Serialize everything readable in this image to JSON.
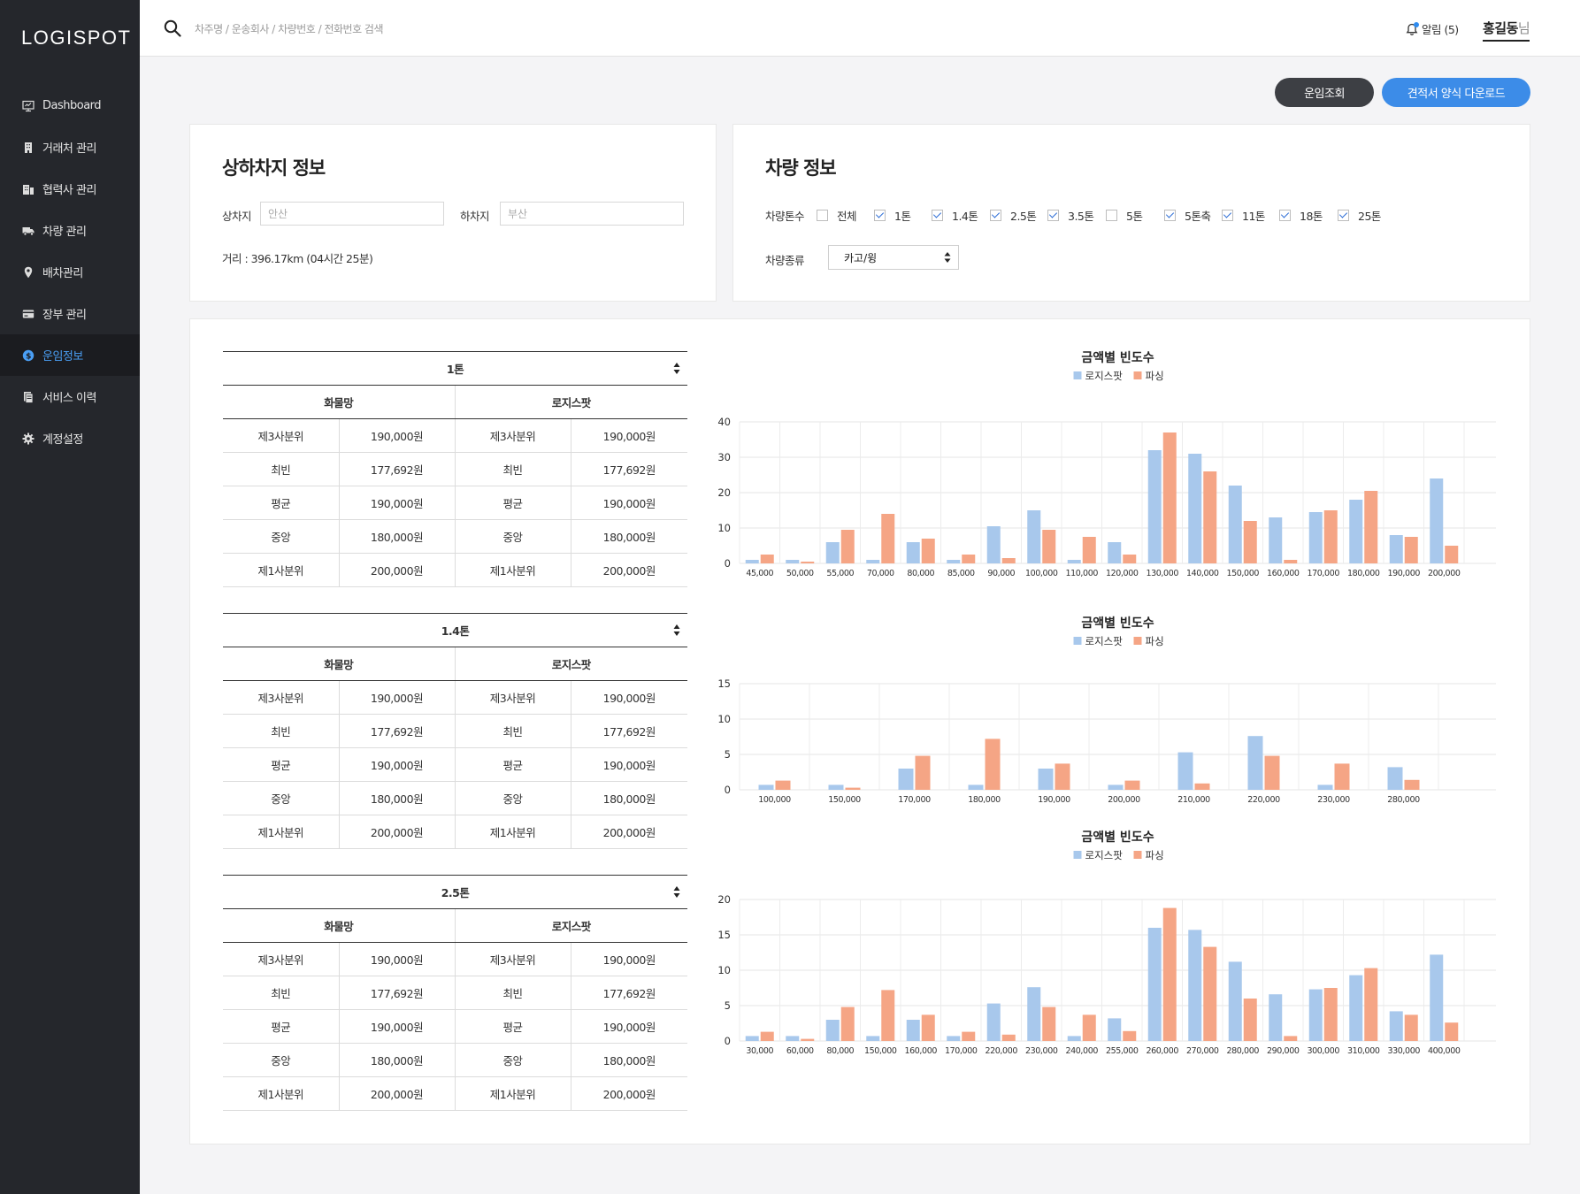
{
  "app": {
    "logo": "LOGISPOT"
  },
  "sidebar": {
    "items": [
      {
        "label": "Dashboard",
        "icon": "monitor-icon"
      },
      {
        "label": "거래처 관리",
        "icon": "building-icon"
      },
      {
        "label": "협력사 관리",
        "icon": "buildings-icon"
      },
      {
        "label": "차량 관리",
        "icon": "truck-icon"
      },
      {
        "label": "배차관리",
        "icon": "location-pin-icon"
      },
      {
        "label": "장부 관리",
        "icon": "card-icon"
      },
      {
        "label": "운임정보",
        "icon": "dollar-circle-icon",
        "active": true
      },
      {
        "label": "서비스 이력",
        "icon": "document-icon"
      },
      {
        "label": "계정설정",
        "icon": "gear-icon"
      }
    ]
  },
  "topbar": {
    "search_placeholder": "차주명 / 운송회사 / 차량번호 / 전화번호 검색",
    "alarm_label": "알림 (5)",
    "user_name": "홍길동",
    "user_suffix": "님"
  },
  "actions": {
    "fare_lookup": "운임조회",
    "download_quote": "견적서 양식 다운로드"
  },
  "load_info": {
    "title": "상하차지 정보",
    "pickup_label": "상차지",
    "pickup_placeholder": "안산",
    "dropoff_label": "하차지",
    "dropoff_placeholder": "부산",
    "distance": "거리 : 396.17km (04시간 25분)"
  },
  "vehicle_info": {
    "title": "차량 정보",
    "tonnage_label": "차량톤수",
    "tonnage_options": [
      {
        "label": "전체",
        "checked": false
      },
      {
        "label": "1톤",
        "checked": true
      },
      {
        "label": "1.4톤",
        "checked": true
      },
      {
        "label": "2.5톤",
        "checked": true
      },
      {
        "label": "3.5톤",
        "checked": true
      },
      {
        "label": "5톤",
        "checked": false
      },
      {
        "label": "5톤축",
        "checked": true
      },
      {
        "label": "11톤",
        "checked": true
      },
      {
        "label": "18톤",
        "checked": true
      },
      {
        "label": "25톤",
        "checked": true
      }
    ],
    "type_label": "차량종류",
    "type_value": "카고/윙"
  },
  "tables": [
    {
      "title": "1톤",
      "group_left": "화물망",
      "group_right": "로지스팟",
      "rows": [
        {
          "left_label": "제3사분위",
          "left_value": "190,000원",
          "right_label": "제3사분위",
          "right_value": "190,000원"
        },
        {
          "left_label": "최빈",
          "left_value": "177,692원",
          "right_label": "최빈",
          "right_value": "177,692원"
        },
        {
          "left_label": "평균",
          "left_value": "190,000원",
          "right_label": "평균",
          "right_value": "190,000원"
        },
        {
          "left_label": "중앙",
          "left_value": "180,000원",
          "right_label": "중앙",
          "right_value": "180,000원"
        },
        {
          "left_label": "제1사분위",
          "left_value": "200,000원",
          "right_label": "제1사분위",
          "right_value": "200,000원"
        }
      ]
    },
    {
      "title": "1.4톤",
      "group_left": "화물망",
      "group_right": "로지스팟",
      "rows": [
        {
          "left_label": "제3사분위",
          "left_value": "190,000원",
          "right_label": "제3사분위",
          "right_value": "190,000원"
        },
        {
          "left_label": "최빈",
          "left_value": "177,692원",
          "right_label": "최빈",
          "right_value": "177,692원"
        },
        {
          "left_label": "평균",
          "left_value": "190,000원",
          "right_label": "평균",
          "right_value": "190,000원"
        },
        {
          "left_label": "중앙",
          "left_value": "180,000원",
          "right_label": "중앙",
          "right_value": "180,000원"
        },
        {
          "left_label": "제1사분위",
          "left_value": "200,000원",
          "right_label": "제1사분위",
          "right_value": "200,000원"
        }
      ]
    },
    {
      "title": "2.5톤",
      "group_left": "화물망",
      "group_right": "로지스팟",
      "rows": [
        {
          "left_label": "제3사분위",
          "left_value": "190,000원",
          "right_label": "제3사분위",
          "right_value": "190,000원"
        },
        {
          "left_label": "최빈",
          "left_value": "177,692원",
          "right_label": "최빈",
          "right_value": "177,692원"
        },
        {
          "left_label": "평균",
          "left_value": "190,000원",
          "right_label": "평균",
          "right_value": "190,000원"
        },
        {
          "left_label": "중앙",
          "left_value": "180,000원",
          "right_label": "중앙",
          "right_value": "180,000원"
        },
        {
          "left_label": "제1사분위",
          "left_value": "200,000원",
          "right_label": "제1사분위",
          "right_value": "200,000원"
        }
      ]
    }
  ],
  "chart_data": [
    {
      "type": "bar",
      "title": "금액별 빈도수",
      "legend": "top-center",
      "grid": true,
      "ylim": [
        0,
        40
      ],
      "yticks": [
        0,
        10,
        20,
        30,
        40
      ],
      "categories": [
        "45,000",
        "50,000",
        "55,000",
        "70,000",
        "80,000",
        "85,000",
        "90,000",
        "100,000",
        "110,000",
        "120,000",
        "130,000",
        "140,000",
        "150,000",
        "160,000",
        "170,000",
        "180,000",
        "190,000",
        "200,000"
      ],
      "series": [
        {
          "name": "로지스팟",
          "color": "#a8c8ec",
          "values": [
            1,
            1,
            6,
            1,
            6,
            1,
            10.5,
            15,
            1,
            6,
            32,
            31,
            22,
            13,
            14.5,
            18,
            8,
            24
          ]
        },
        {
          "name": "파싱",
          "color": "#f5a585",
          "values": [
            2.5,
            0.5,
            9.5,
            14,
            7,
            2.5,
            1.5,
            9.5,
            7.5,
            2.5,
            37,
            26,
            12,
            1,
            15,
            20.5,
            7.5,
            5
          ]
        }
      ]
    },
    {
      "type": "bar",
      "title": "금액별 빈도수",
      "legend": "top-center",
      "grid": true,
      "ylim": [
        0,
        15
      ],
      "yticks": [
        0,
        5,
        10,
        15
      ],
      "categories": [
        "100,000",
        "150,000",
        "170,000",
        "180,000",
        "190,000",
        "200,000",
        "210,000",
        "220,000",
        "230,000",
        "280,000"
      ],
      "series": [
        {
          "name": "로지스팟",
          "color": "#a8c8ec",
          "values": [
            0.7,
            0.7,
            3,
            0.7,
            3,
            0.7,
            5.3,
            7.6,
            0.7,
            3.2
          ]
        },
        {
          "name": "파싱",
          "color": "#f5a585",
          "values": [
            1.3,
            0.3,
            4.8,
            7.2,
            3.7,
            1.3,
            0.9,
            4.8,
            3.7,
            1.4
          ]
        }
      ]
    },
    {
      "type": "bar",
      "title": "금액별 빈도수",
      "legend": "top-center",
      "grid": true,
      "ylim": [
        0,
        20
      ],
      "yticks": [
        0,
        5,
        10,
        15,
        20
      ],
      "categories": [
        "30,000",
        "60,000",
        "80,000",
        "150,000",
        "160,000",
        "170,000",
        "220,000",
        "230,000",
        "240,000",
        "255,000",
        "260,000",
        "270,000",
        "280,000",
        "290,000",
        "300,000",
        "310,000",
        "330,000",
        "400,000"
      ],
      "series": [
        {
          "name": "로지스팟",
          "color": "#a8c8ec",
          "values": [
            0.7,
            0.7,
            3,
            0.7,
            3,
            0.7,
            5.3,
            7.6,
            0.7,
            3.2,
            16,
            15.7,
            11.2,
            6.6,
            7.3,
            9.3,
            4.2,
            12.2
          ]
        },
        {
          "name": "파싱",
          "color": "#f5a585",
          "values": [
            1.3,
            0.3,
            4.8,
            7.2,
            3.7,
            1.3,
            0.9,
            4.8,
            3.7,
            1.4,
            18.8,
            13.3,
            6,
            0.7,
            7.5,
            10.3,
            3.7,
            2.6
          ]
        }
      ]
    }
  ]
}
